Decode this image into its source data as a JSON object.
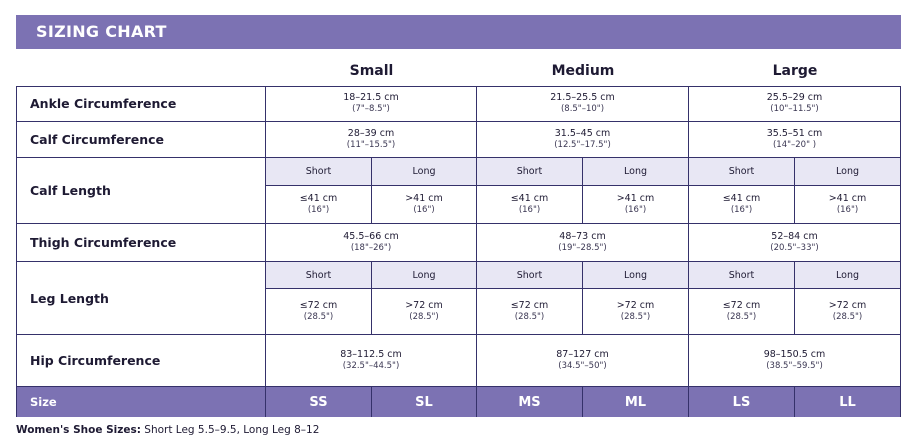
{
  "title": "SIZING CHART",
  "columns": [
    "Small",
    "Medium",
    "Large"
  ],
  "rows": {
    "ankle": {
      "label": "Ankle Circumference",
      "values": [
        {
          "cm": "18–21.5 cm",
          "in": "(7\"–8.5\")"
        },
        {
          "cm": "21.5–25.5 cm",
          "in": "(8.5\"–10\")"
        },
        {
          "cm": "25.5–29 cm",
          "in": "(10\"–11.5\")"
        }
      ]
    },
    "calf_circ": {
      "label": "Calf Circumference",
      "values": [
        {
          "cm": "28–39 cm",
          "in": "(11\"–15.5\")"
        },
        {
          "cm": "31.5–45 cm",
          "in": "(12.5\"–17.5\")"
        },
        {
          "cm": "35.5–51 cm",
          "in": "(14\"–20\" )"
        }
      ]
    },
    "calf_length": {
      "label": "Calf Length",
      "sub_labels": [
        "Short",
        "Long",
        "Short",
        "Long",
        "Short",
        "Long"
      ],
      "values": [
        {
          "cm": "≤41 cm",
          "in": "(16\")"
        },
        {
          "cm": ">41 cm",
          "in": "(16\")"
        },
        {
          "cm": "≤41 cm",
          "in": "(16\")"
        },
        {
          "cm": ">41 cm",
          "in": "(16\")"
        },
        {
          "cm": "≤41 cm",
          "in": "(16\")"
        },
        {
          "cm": ">41 cm",
          "in": "(16\")"
        }
      ]
    },
    "thigh": {
      "label": "Thigh Circumference",
      "values": [
        {
          "cm": "45.5–66 cm",
          "in": "(18\"–26\")"
        },
        {
          "cm": "48–73 cm",
          "in": "(19\"–28.5\")"
        },
        {
          "cm": "52–84 cm",
          "in": "(20.5\"–33\")"
        }
      ]
    },
    "leg_length": {
      "label": "Leg Length",
      "sub_labels": [
        "Short",
        "Long",
        "Short",
        "Long",
        "Short",
        "Long"
      ],
      "values": [
        {
          "cm": "≤72 cm",
          "in": "(28.5\")"
        },
        {
          "cm": ">72 cm",
          "in": "(28.5\")"
        },
        {
          "cm": "≤72 cm",
          "in": "(28.5\")"
        },
        {
          "cm": ">72 cm",
          "in": "(28.5\")"
        },
        {
          "cm": "≤72 cm",
          "in": "(28.5\")"
        },
        {
          "cm": ">72 cm",
          "in": "(28.5\")"
        }
      ]
    },
    "hip": {
      "label": "Hip Circumference",
      "values": [
        {
          "cm": "83–112.5 cm",
          "in": "(32.5\"–44.5\")"
        },
        {
          "cm": "87–127 cm",
          "in": "(34.5\"–50\")"
        },
        {
          "cm": "98–150.5 cm",
          "in": "(38.5\"–59.5\")"
        }
      ]
    },
    "size": {
      "label": "Size",
      "codes": [
        "SS",
        "SL",
        "MS",
        "ML",
        "LS",
        "LL"
      ]
    }
  },
  "footer": {
    "label": "Women's Shoe Sizes:",
    "text": " Short Leg 5.5–9.5, Long Leg 8–12"
  },
  "colors": {
    "banner": "#7c72b3",
    "subheader": "#e8e7f4",
    "border": "#35316a"
  }
}
